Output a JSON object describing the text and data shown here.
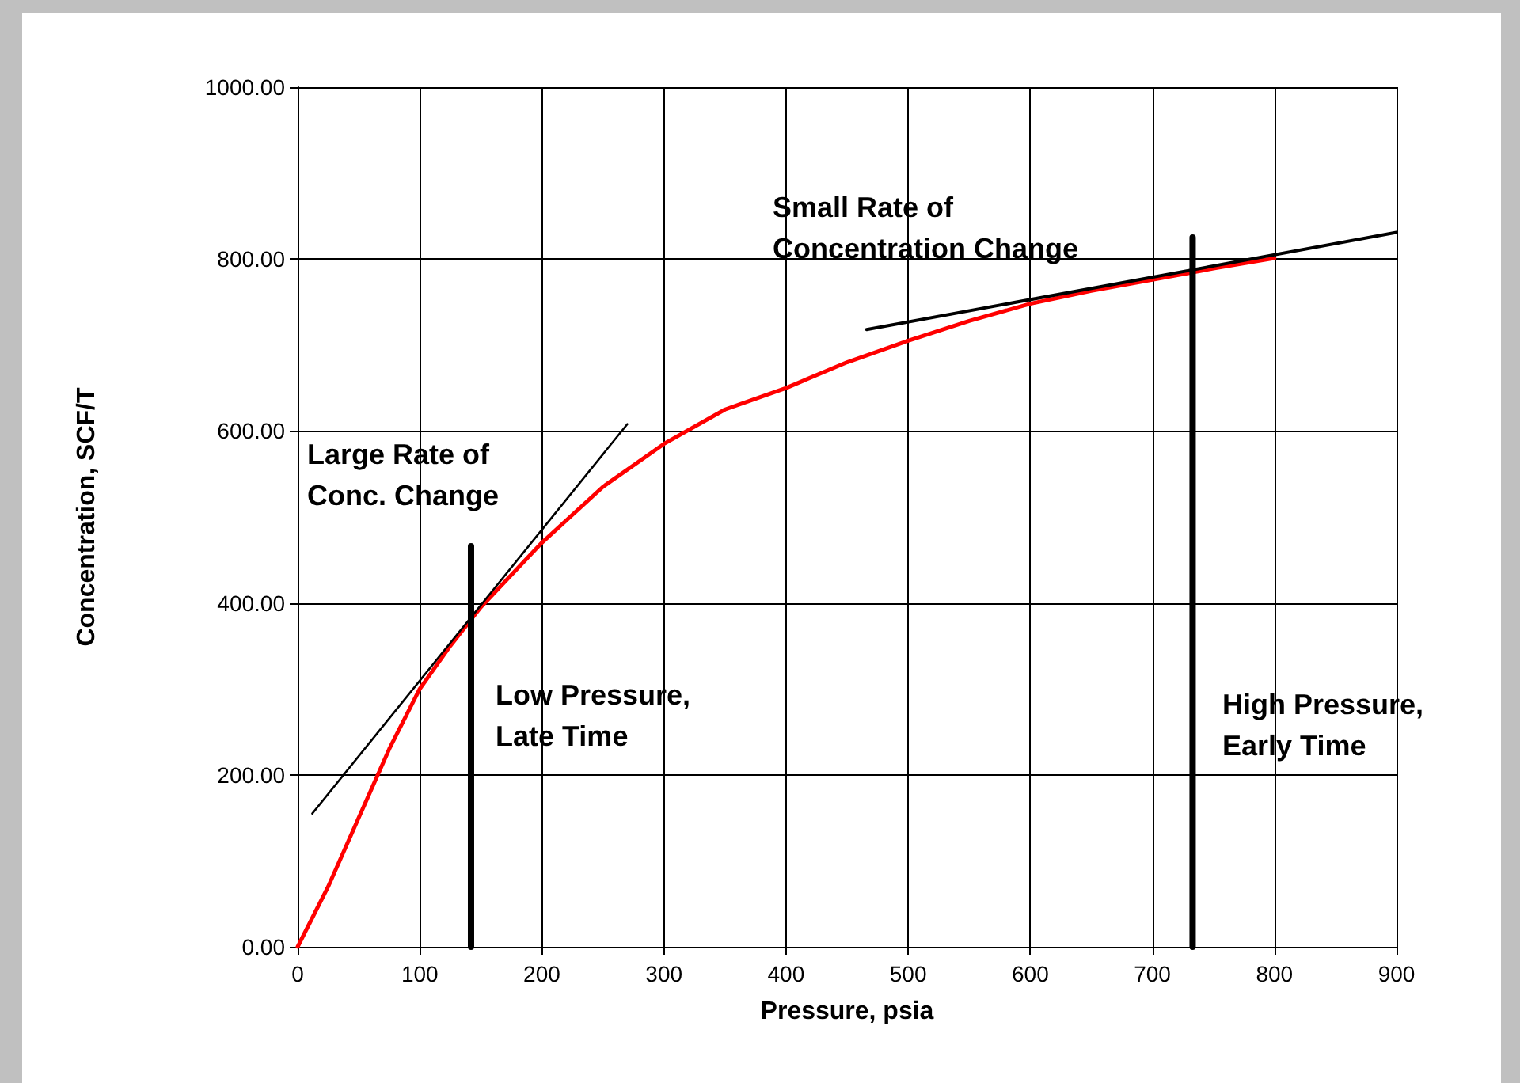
{
  "chart_data": {
    "type": "line",
    "xlabel": "Pressure, psia",
    "ylabel": "Concentration, SCF/T",
    "xlim": [
      0,
      900
    ],
    "xticks": [
      0,
      100,
      200,
      300,
      400,
      500,
      600,
      700,
      800,
      900
    ],
    "ylim": [
      0,
      1000
    ],
    "yticks": [
      {
        "value": 0,
        "label": "0.00"
      },
      {
        "value": 200,
        "label": "200.00"
      },
      {
        "value": 400,
        "label": "400.00"
      },
      {
        "value": 600,
        "label": "600.00"
      },
      {
        "value": 800,
        "label": "800.00"
      },
      {
        "value": 1000,
        "label": "1000.00"
      }
    ],
    "grid": true,
    "marker": "none",
    "line_style": "solid",
    "series": [
      {
        "color": "#ff0000",
        "x": [
          0,
          25,
          50,
          75,
          100,
          125,
          150,
          200,
          250,
          300,
          350,
          400,
          450,
          500,
          550,
          600,
          650,
          700,
          750,
          800
        ],
        "values": [
          0,
          70,
          150,
          230,
          300,
          350,
          395,
          470,
          535,
          585,
          625,
          650,
          680,
          705,
          728,
          748,
          763,
          776,
          789,
          801
        ]
      },
      {
        "color": "#000000",
        "x": [
          12,
          270
        ],
        "values": [
          155,
          608
        ]
      },
      {
        "color": "#000000",
        "x": [
          466,
          900
        ],
        "values": [
          718,
          831
        ]
      },
      {
        "color": "#000000",
        "x": [
          142,
          142
        ],
        "values": [
          0,
          466
        ]
      },
      {
        "color": "#000000",
        "x": [
          733,
          733
        ],
        "values": [
          0,
          825
        ]
      }
    ],
    "annotations": [
      "Large Rate of\nConc. Change",
      "Small Rate of\nConcentration Change",
      "Low Pressure,\nLate Time",
      "High Pressure,\nEarly Time"
    ]
  }
}
